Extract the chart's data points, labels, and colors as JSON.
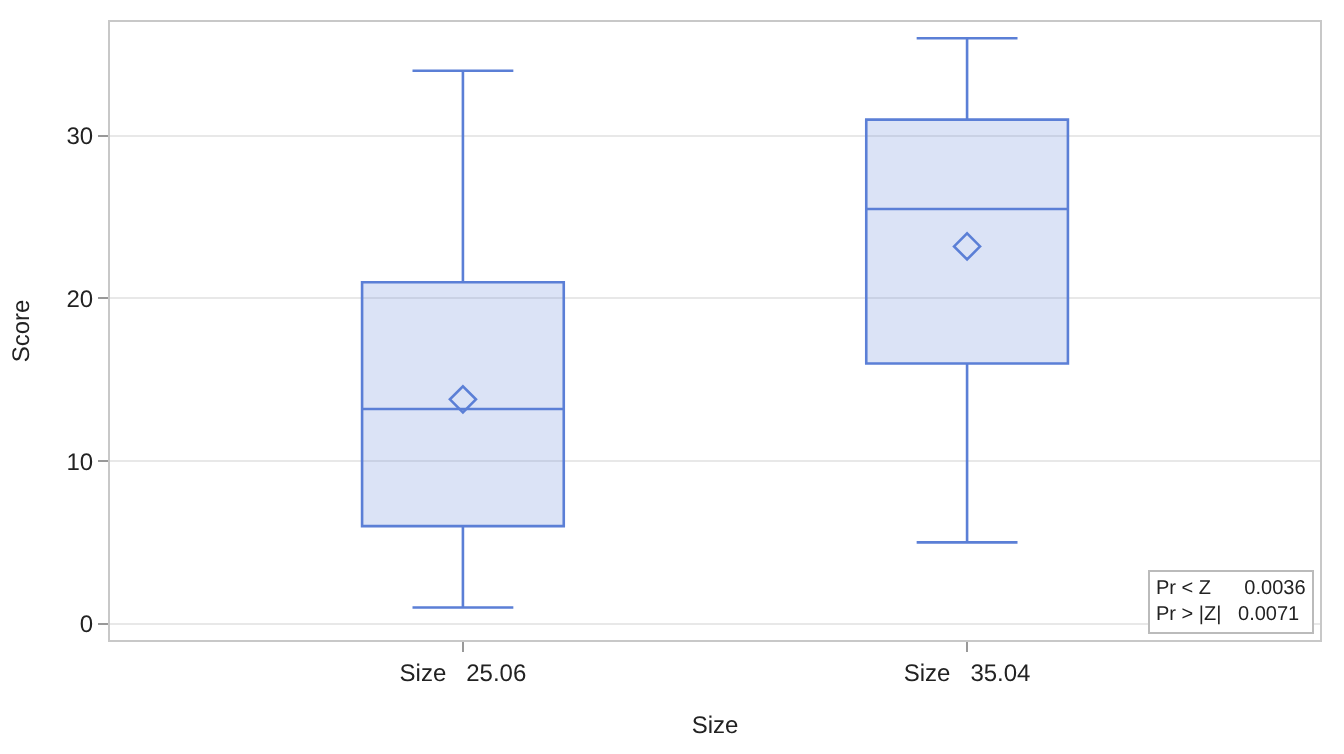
{
  "chart_data": {
    "type": "box",
    "xlabel": "Size",
    "ylabel": "Score",
    "categories": [
      "Size   25.06",
      "Size   35.04"
    ],
    "boxes": [
      {
        "low": 1,
        "q1": 6,
        "median": 13.2,
        "q3": 21,
        "high": 34,
        "mean": 13.8
      },
      {
        "low": 5,
        "q1": 16,
        "median": 25.5,
        "q3": 31,
        "high": 36,
        "mean": 23.2
      }
    ],
    "color": "#5b7fd6",
    "ylim": [
      -1,
      37
    ],
    "yticks": [
      0,
      10,
      20,
      30
    ],
    "grid": "y",
    "marker": "diamond",
    "annotations": [
      "Pr < Z      0.0036",
      "Pr > |Z|   0.0071"
    ]
  }
}
